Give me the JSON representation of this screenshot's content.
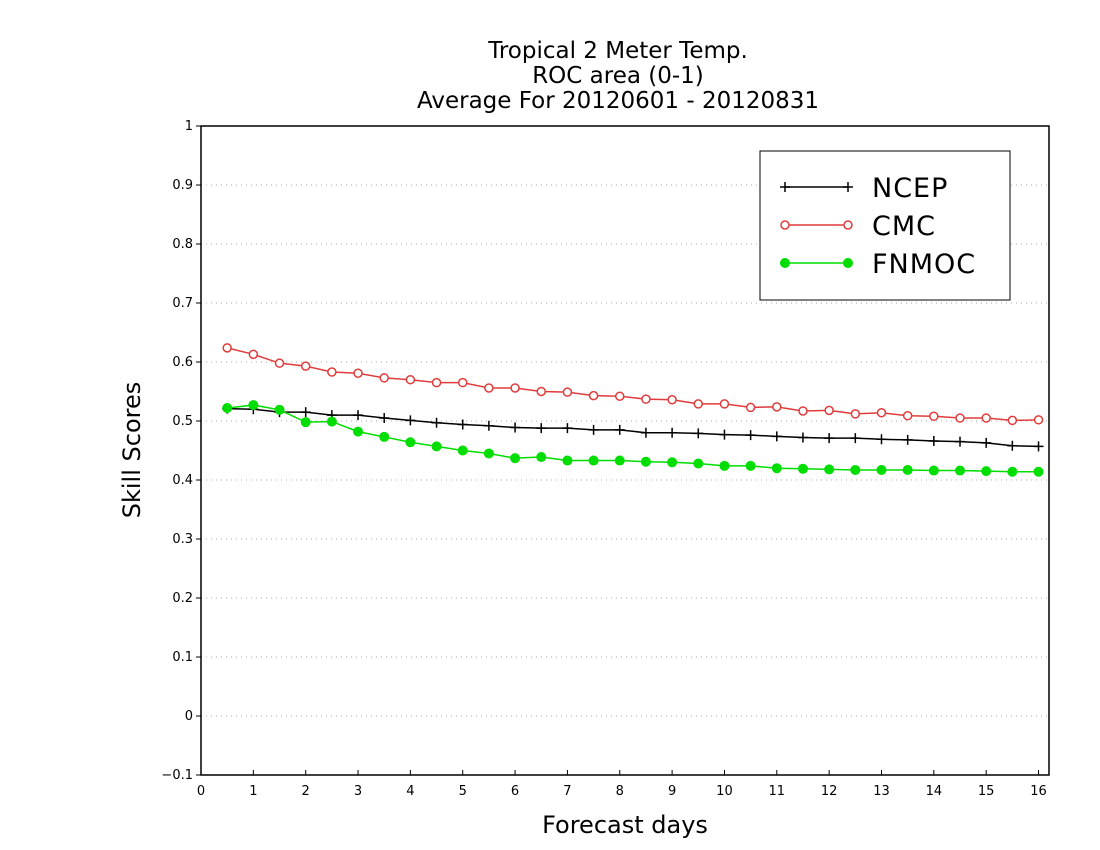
{
  "chart_data": {
    "type": "line",
    "title": [
      "Tropical 2 Meter Temp.",
      "ROC area (0-1)",
      "Average For 20120601 - 20120831"
    ],
    "xlabel": "Forecast days",
    "ylabel": "Skill Scores",
    "xlim": [
      0,
      16.2
    ],
    "ylim": [
      -0.1,
      1
    ],
    "xticks": [
      "0",
      "1",
      "2",
      "3",
      "4",
      "5",
      "6",
      "7",
      "8",
      "9",
      "10",
      "11",
      "12",
      "13",
      "14",
      "15",
      "16"
    ],
    "yticks": [
      "−0.1",
      "0",
      "0.1",
      "0.2",
      "0.3",
      "0.4",
      "0.5",
      "0.6",
      "0.7",
      "0.8",
      "0.9",
      "1"
    ],
    "grid": "horizontal dotted",
    "legend_position": "top-right",
    "x": [
      0.5,
      1,
      1.5,
      2,
      2.5,
      3,
      3.5,
      4,
      4.5,
      5,
      5.5,
      6,
      6.5,
      7,
      7.5,
      8,
      8.5,
      9,
      9.5,
      10,
      10.5,
      11,
      11.5,
      12,
      12.5,
      13,
      13.5,
      14,
      14.5,
      15,
      15.5,
      16
    ],
    "series": [
      {
        "name": "NCEP",
        "color": "#000000",
        "marker": "plus",
        "values": [
          0.521,
          0.52,
          0.515,
          0.515,
          0.51,
          0.51,
          0.505,
          0.501,
          0.497,
          0.494,
          0.492,
          0.489,
          0.488,
          0.488,
          0.485,
          0.485,
          0.48,
          0.48,
          0.479,
          0.477,
          0.476,
          0.474,
          0.472,
          0.471,
          0.471,
          0.469,
          0.468,
          0.466,
          0.465,
          0.463,
          0.458,
          0.457
        ]
      },
      {
        "name": "CMC",
        "color": "#e03c3c",
        "marker": "open-circle",
        "values": [
          0.624,
          0.613,
          0.598,
          0.593,
          0.583,
          0.581,
          0.573,
          0.57,
          0.565,
          0.565,
          0.556,
          0.556,
          0.55,
          0.549,
          0.543,
          0.542,
          0.537,
          0.536,
          0.529,
          0.529,
          0.523,
          0.524,
          0.517,
          0.518,
          0.512,
          0.514,
          0.509,
          0.508,
          0.505,
          0.505,
          0.501,
          0.502
        ]
      },
      {
        "name": "FNMOC",
        "color": "#00dd00",
        "marker": "filled-circle",
        "values": [
          0.522,
          0.527,
          0.519,
          0.498,
          0.499,
          0.482,
          0.473,
          0.464,
          0.457,
          0.45,
          0.445,
          0.437,
          0.439,
          0.433,
          0.433,
          0.433,
          0.431,
          0.43,
          0.428,
          0.424,
          0.424,
          0.42,
          0.419,
          0.418,
          0.417,
          0.417,
          0.417,
          0.416,
          0.416,
          0.415,
          0.414,
          0.414
        ]
      }
    ]
  }
}
